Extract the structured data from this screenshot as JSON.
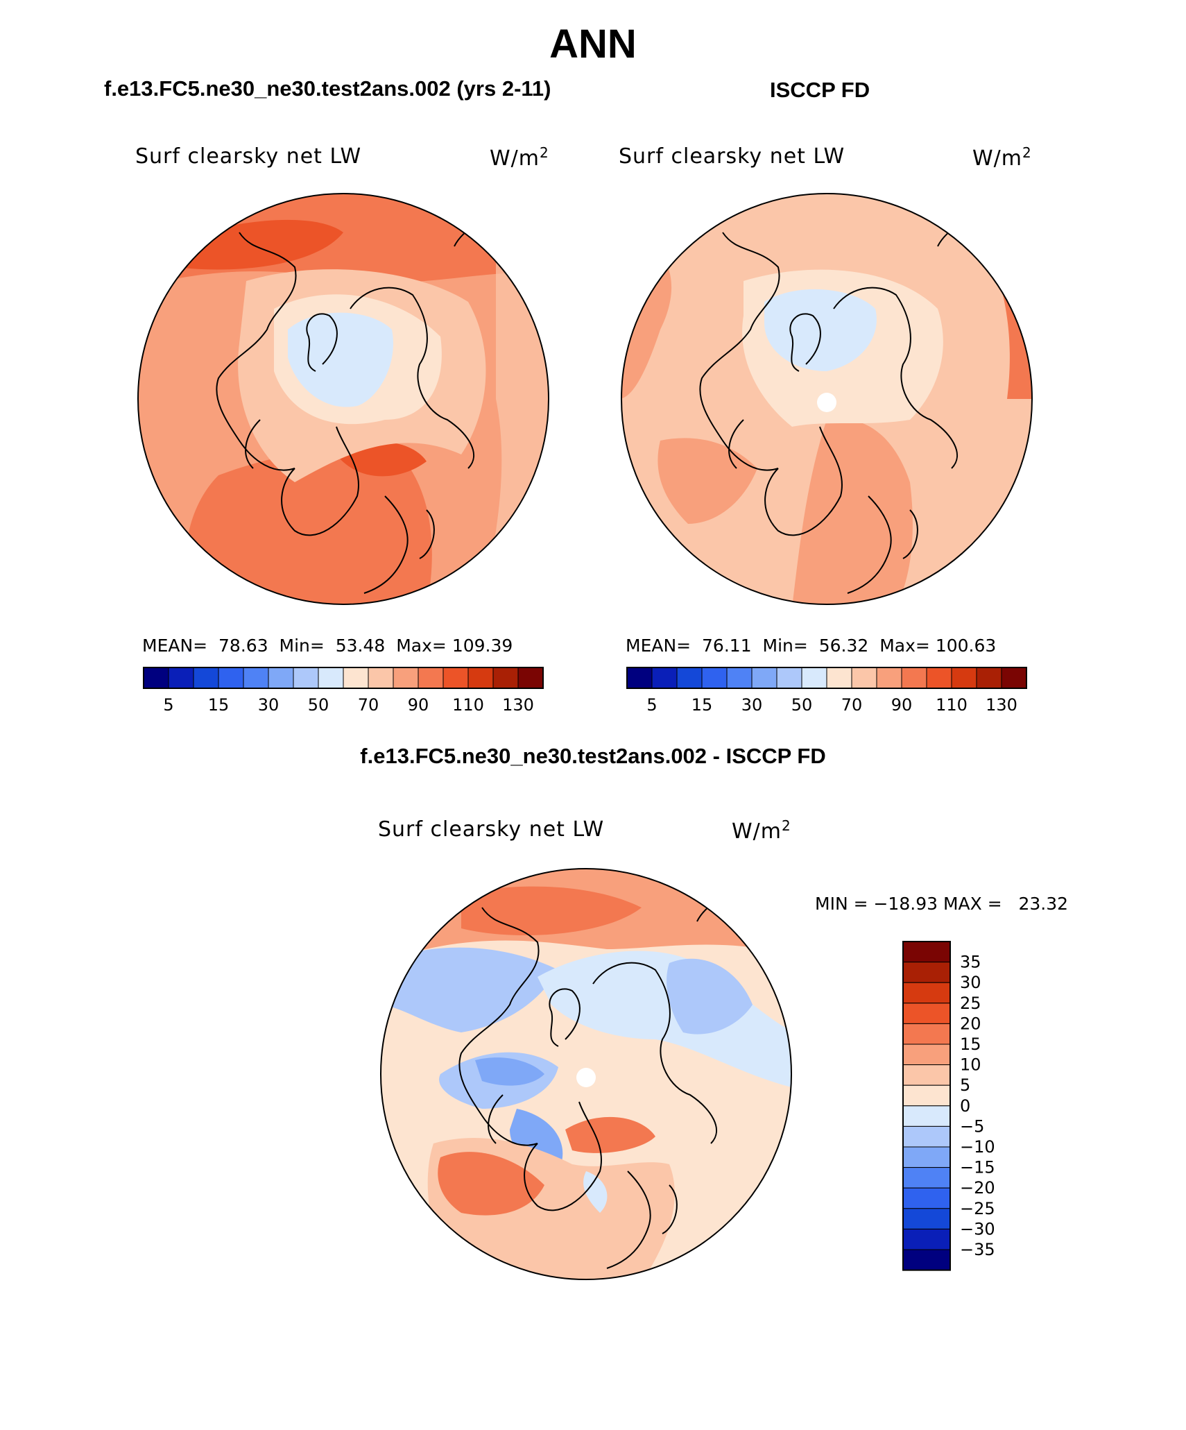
{
  "main_title": "ANN",
  "panels": [
    {
      "title": "f.e13.FC5.ne30_ne30.test2ans.002 (yrs 2-11)",
      "variable": "Surf clearsky net LW",
      "units_base": "W/m",
      "units_exp": "2",
      "mean_label": "MEAN=",
      "mean": "78.63",
      "min_label": "Min=",
      "min": "53.48",
      "max_label": "Max=",
      "max": "109.39"
    },
    {
      "title": "ISCCP FD",
      "variable": "Surf clearsky net LW",
      "units_base": "W/m",
      "units_exp": "2",
      "mean_label": "MEAN=",
      "mean": "76.11",
      "min_label": "Min=",
      "min": "56.32",
      "max_label": "Max=",
      "max": "100.63"
    }
  ],
  "abs_colorbar": {
    "tick_labels": [
      "5",
      "15",
      "30",
      "50",
      "70",
      "90",
      "110",
      "130"
    ],
    "colors": [
      "#00007f",
      "#0a1fb8",
      "#1448d8",
      "#2f62ef",
      "#4f82f5",
      "#7fa8f7",
      "#adc8fa",
      "#d8e9fc",
      "#fde4d0",
      "#fbc6a9",
      "#f8a07c",
      "#f37850",
      "#ec5428",
      "#d63a10",
      "#a92005",
      "#7a0503"
    ]
  },
  "difference": {
    "title": "f.e13.FC5.ne30_ne30.test2ans.002 - ISCCP FD",
    "variable": "Surf clearsky net LW",
    "units_base": "W/m",
    "units_exp": "2",
    "minmax_text": "MIN = −18.93 MAX =   23.32",
    "colorbar": {
      "tick_labels": [
        "35",
        "30",
        "25",
        "20",
        "15",
        "10",
        "5",
        "0",
        "−5",
        "−10",
        "−15",
        "−20",
        "−25",
        "−30",
        "−35"
      ],
      "colors": [
        "#7a0503",
        "#a92005",
        "#d63a10",
        "#ec5428",
        "#f37850",
        "#f8a07c",
        "#fbc6a9",
        "#fde4d0",
        "#d8e9fc",
        "#adc8fa",
        "#7fa8f7",
        "#4f82f5",
        "#2f62ef",
        "#1448d8",
        "#0a1fb8",
        "#00007f"
      ]
    }
  }
}
